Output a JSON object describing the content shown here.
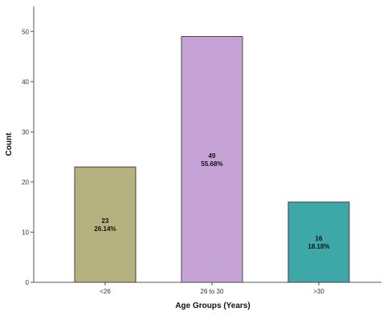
{
  "chart_data": {
    "type": "bar",
    "title": "",
    "xlabel": "Age Groups (Years)",
    "ylabel": "Count",
    "ylim": [
      0,
      55
    ],
    "yticks": [
      0,
      10,
      20,
      30,
      40,
      50
    ],
    "grid": false,
    "categories": [
      "<26",
      "26 to 30",
      ">30"
    ],
    "values": [
      23,
      49,
      16
    ],
    "percent_labels": [
      "26.14%",
      "55.68%",
      "18.18%"
    ],
    "colors": [
      "#b5b27f",
      "#c6a3d6",
      "#3ea8a8"
    ]
  }
}
